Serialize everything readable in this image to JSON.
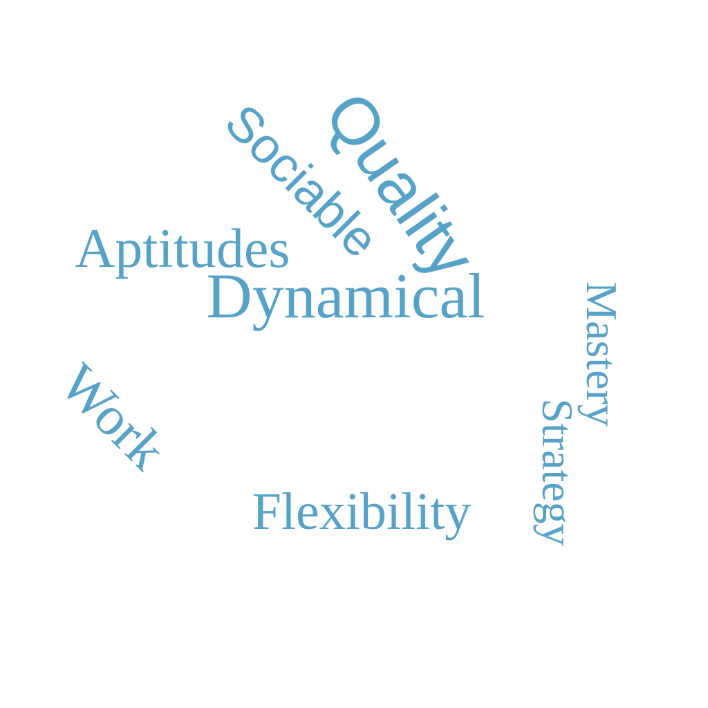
{
  "colors": {
    "background": "#ffffff",
    "word": "#56a2c8"
  },
  "words": {
    "quality": "Quality",
    "sociable": "Sociable",
    "aptitudes": "Aptitudes",
    "dynamical": "Dynamical",
    "work": "Work",
    "flexibility": "Flexibility",
    "mastery": "Mastery",
    "strategy": "Strategy"
  }
}
